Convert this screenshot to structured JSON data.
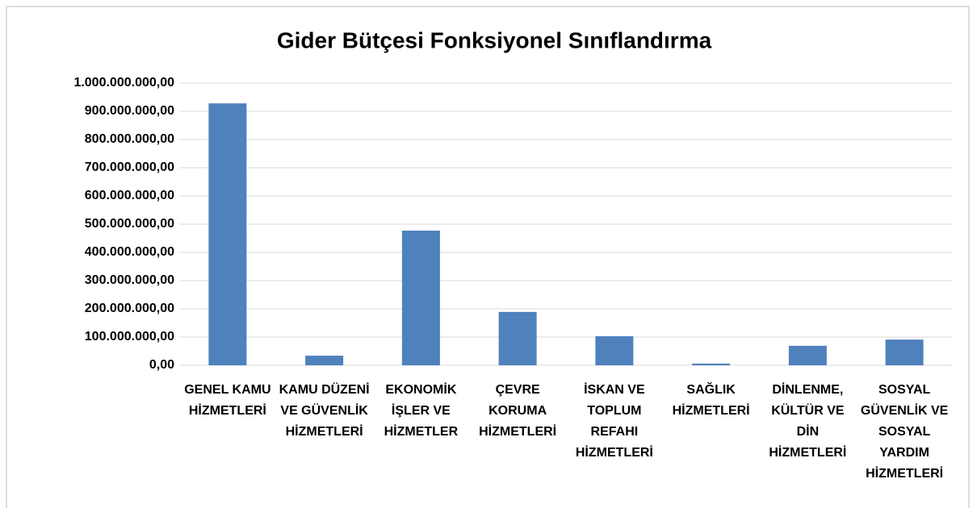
{
  "chart_data": {
    "type": "bar",
    "title": "Gider Bütçesi Fonksiyonel Sınıflandırma",
    "categories": [
      "GENEL KAMU HİZMETLERİ",
      "KAMU DÜZENİ VE GÜVENLİK HİZMETLERİ",
      "EKONOMİK İŞLER VE HİZMETLER",
      "ÇEVRE KORUMA HİZMETLERİ",
      "İSKAN VE TOPLUM REFAHI HİZMETLERİ",
      "SAĞLIK HİZMETLERİ",
      "DİNLENME, KÜLTÜR VE DİN HİZMETLERİ",
      "SOSYAL GÜVENLİK VE SOSYAL YARDIM HİZMETLERİ"
    ],
    "values": [
      928000000,
      34000000,
      477000000,
      189000000,
      103000000,
      6000000,
      69000000,
      91000000
    ],
    "color": "#4f81bd",
    "ylim": [
      0,
      1000000000
    ],
    "yticks": [
      {
        "value": 0,
        "label": "0,00"
      },
      {
        "value": 100000000,
        "label": "100.000.000,00"
      },
      {
        "value": 200000000,
        "label": "200.000.000,00"
      },
      {
        "value": 300000000,
        "label": "300.000.000,00"
      },
      {
        "value": 400000000,
        "label": "400.000.000,00"
      },
      {
        "value": 500000000,
        "label": "500.000.000,00"
      },
      {
        "value": 600000000,
        "label": "600.000.000,00"
      },
      {
        "value": 700000000,
        "label": "700.000.000,00"
      },
      {
        "value": 800000000,
        "label": "800.000.000,00"
      },
      {
        "value": 900000000,
        "label": "900.000.000,00"
      },
      {
        "value": 1000000000,
        "label": "1.000.000.000,00"
      }
    ],
    "grid": true
  }
}
